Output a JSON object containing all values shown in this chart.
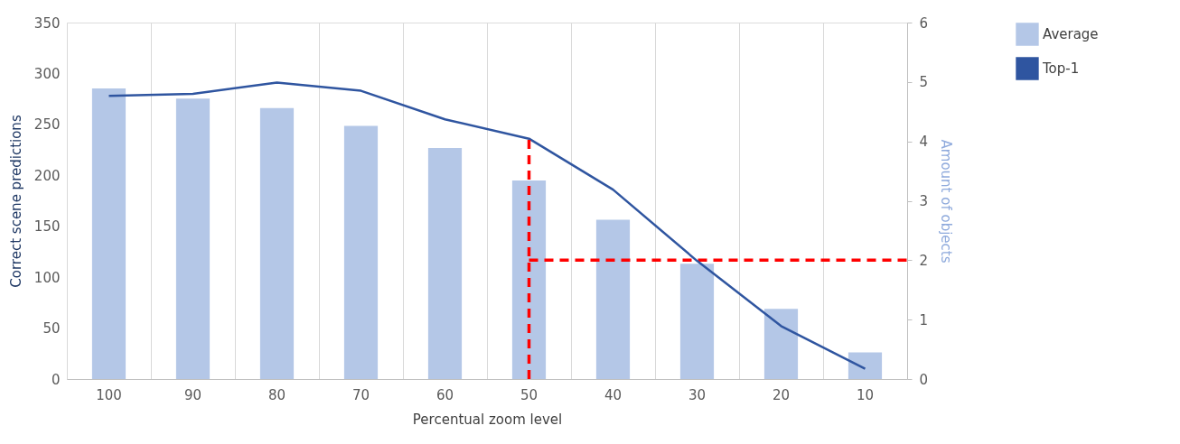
{
  "chart_data": {
    "type": "bar",
    "xlabel": "Percentual zoom level",
    "ylabel": "Correct scene predictions",
    "y2label": "Amount of objects",
    "categories": [
      "100",
      "90",
      "80",
      "70",
      "60",
      "50",
      "40",
      "30",
      "20",
      "10"
    ],
    "series": [
      {
        "name": "Average",
        "axis": "y2",
        "color": "#b4c7e7",
        "values": [
          4.89,
          4.72,
          4.56,
          4.26,
          3.89,
          3.34,
          2.68,
          1.94,
          1.18,
          0.45
        ]
      },
      {
        "name": "Top-1",
        "type": "line",
        "color": "#2f55a0",
        "values": [
          278,
          280,
          291,
          283,
          255,
          236,
          186,
          116,
          52,
          10
        ]
      }
    ],
    "ylim": [
      0,
      350
    ],
    "yticks": [
      0,
      50,
      100,
      150,
      200,
      250,
      300,
      350
    ],
    "y2lim": [
      0,
      6
    ],
    "y2ticks": [
      0,
      1,
      2,
      3,
      4,
      5,
      6
    ],
    "ref_lines": [
      {
        "axis": "x",
        "value": "50",
        "color": "#ff0000",
        "line_style": "dashed"
      },
      {
        "axis": "y2",
        "value": 2,
        "color": "#ff0000",
        "line_style": "dashed"
      }
    ],
    "grid": "x",
    "legend": "right",
    "marker": "none",
    "line_style": "solid"
  }
}
